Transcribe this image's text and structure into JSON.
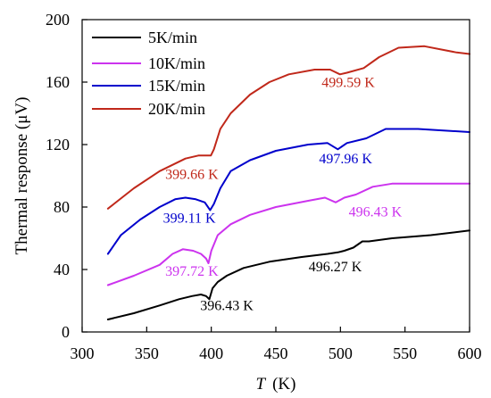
{
  "chart_data": {
    "type": "line",
    "xlabel_var": "T",
    "xlabel_unit": "(K)",
    "ylabel": "Thermal response  (μV)",
    "xlim": [
      300,
      600
    ],
    "ylim": [
      0,
      200
    ],
    "x_ticks": [
      "300",
      "350",
      "400",
      "450",
      "500",
      "550",
      "600"
    ],
    "y_ticks": [
      "0",
      "40",
      "80",
      "120",
      "160",
      "200"
    ],
    "grid": false,
    "legend_position": "top-left",
    "series": [
      {
        "name": "5K/min",
        "color": "#000000",
        "x": [
          320,
          340,
          360,
          375,
          385,
          392,
          396,
          398.5,
          401,
          405,
          412,
          425,
          445,
          470,
          490,
          498,
          503,
          510,
          517,
          522,
          540,
          570,
          600
        ],
        "y": [
          8,
          12,
          17,
          21,
          23,
          24,
          23,
          21,
          28,
          32,
          36,
          41,
          45,
          48,
          50,
          51,
          52,
          54,
          58,
          58,
          60,
          62,
          65
        ]
      },
      {
        "name": "10K/min",
        "color": "#cc33ee",
        "x": [
          320,
          340,
          360,
          370,
          378,
          386,
          392,
          396,
          397.8,
          400,
          405,
          415,
          430,
          450,
          475,
          488,
          496.4,
          503,
          512,
          525,
          540,
          570,
          600
        ],
        "y": [
          30,
          36,
          43,
          50,
          53,
          52,
          50,
          47,
          44,
          52,
          62,
          69,
          75,
          80,
          84,
          86,
          83,
          86,
          88,
          93,
          95,
          95,
          95
        ]
      },
      {
        "name": "15K/min",
        "color": "#0000cc",
        "x": [
          320,
          330,
          345,
          360,
          372,
          380,
          388,
          395,
          399.1,
          402,
          407,
          415,
          430,
          450,
          475,
          490,
          498,
          505,
          520,
          535,
          560,
          600
        ],
        "y": [
          50,
          62,
          72,
          80,
          85,
          86,
          85,
          83,
          78,
          82,
          92,
          103,
          110,
          116,
          120,
          121,
          117,
          121,
          124,
          130,
          130,
          128
        ]
      },
      {
        "name": "20K/min",
        "color": "#c0281a",
        "x": [
          320,
          340,
          360,
          380,
          390,
          396,
          399.7,
          402,
          407,
          415,
          430,
          445,
          460,
          480,
          492,
          499.6,
          505,
          518,
          530,
          545,
          565,
          590,
          600
        ],
        "y": [
          79,
          92,
          103,
          111,
          113,
          113,
          113,
          117,
          130,
          140,
          152,
          160,
          165,
          168,
          168,
          165,
          166,
          169,
          176,
          182,
          183,
          179,
          178
        ]
      }
    ],
    "annotations": [
      {
        "text": "396.43 K",
        "x": 412,
        "y": 14,
        "color": "#000000"
      },
      {
        "text": "496.27 K",
        "x": 496,
        "y": 39,
        "color": "#000000"
      },
      {
        "text": "397.72 K",
        "x": 385,
        "y": 36,
        "color": "#cc33ee"
      },
      {
        "text": "496.43 K",
        "x": 527,
        "y": 74,
        "color": "#cc33ee"
      },
      {
        "text": "399.11 K",
        "x": 383,
        "y": 70,
        "color": "#0000cc"
      },
      {
        "text": "497.96 K",
        "x": 504,
        "y": 108,
        "color": "#0000cc"
      },
      {
        "text": "399.66 K",
        "x": 385,
        "y": 98,
        "color": "#c0281a"
      },
      {
        "text": "499.59 K",
        "x": 506,
        "y": 157,
        "color": "#c0281a"
      }
    ]
  }
}
